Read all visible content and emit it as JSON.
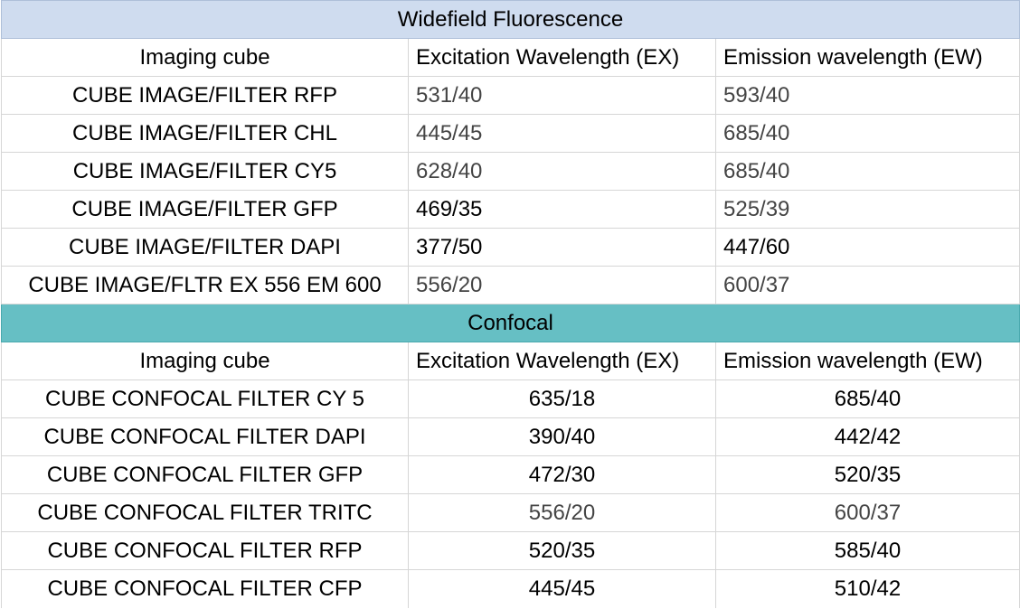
{
  "widefield": {
    "title": "Widefield Fluorescence",
    "headers": [
      "Imaging cube",
      "Excitation Wavelength (EX)",
      "Emission wavelength (EW)"
    ],
    "rows": [
      [
        "CUBE IMAGE/FILTER RFP",
        "531/40",
        "593/40"
      ],
      [
        "CUBE IMAGE/FILTER CHL",
        "445/45",
        "685/40"
      ],
      [
        "CUBE IMAGE/FILTER CY5",
        "628/40",
        "685/40"
      ],
      [
        "CUBE IMAGE/FILTER GFP",
        "469/35",
        "525/39"
      ],
      [
        "CUBE IMAGE/FILTER DAPI",
        "377/50",
        "447/60"
      ],
      [
        "CUBE IMAGE/FLTR EX 556 EM 600",
        "556/20",
        "600/37"
      ]
    ]
  },
  "confocal": {
    "title": "Confocal",
    "headers": [
      "Imaging cube",
      "Excitation Wavelength (EX)",
      "Emission wavelength (EW)"
    ],
    "rows": [
      [
        "CUBE CONFOCAL FILTER CY 5",
        "635/18",
        "685/40"
      ],
      [
        "CUBE CONFOCAL FILTER DAPI",
        "390/40",
        "442/42"
      ],
      [
        "CUBE CONFOCAL FILTER GFP",
        "472/30",
        "520/35"
      ],
      [
        "CUBE CONFOCAL FILTER TRITC",
        "556/20",
        "600/37"
      ],
      [
        "CUBE CONFOCAL FILTER RFP",
        "520/35",
        "585/40"
      ],
      [
        "CUBE CONFOCAL FILTER CFP",
        "445/45",
        "510/42"
      ]
    ]
  },
  "colors": {
    "widefield_header_bg": "#cfdcef",
    "confocal_header_bg": "#66bfc4",
    "grid_line": "#d6d6d6"
  }
}
